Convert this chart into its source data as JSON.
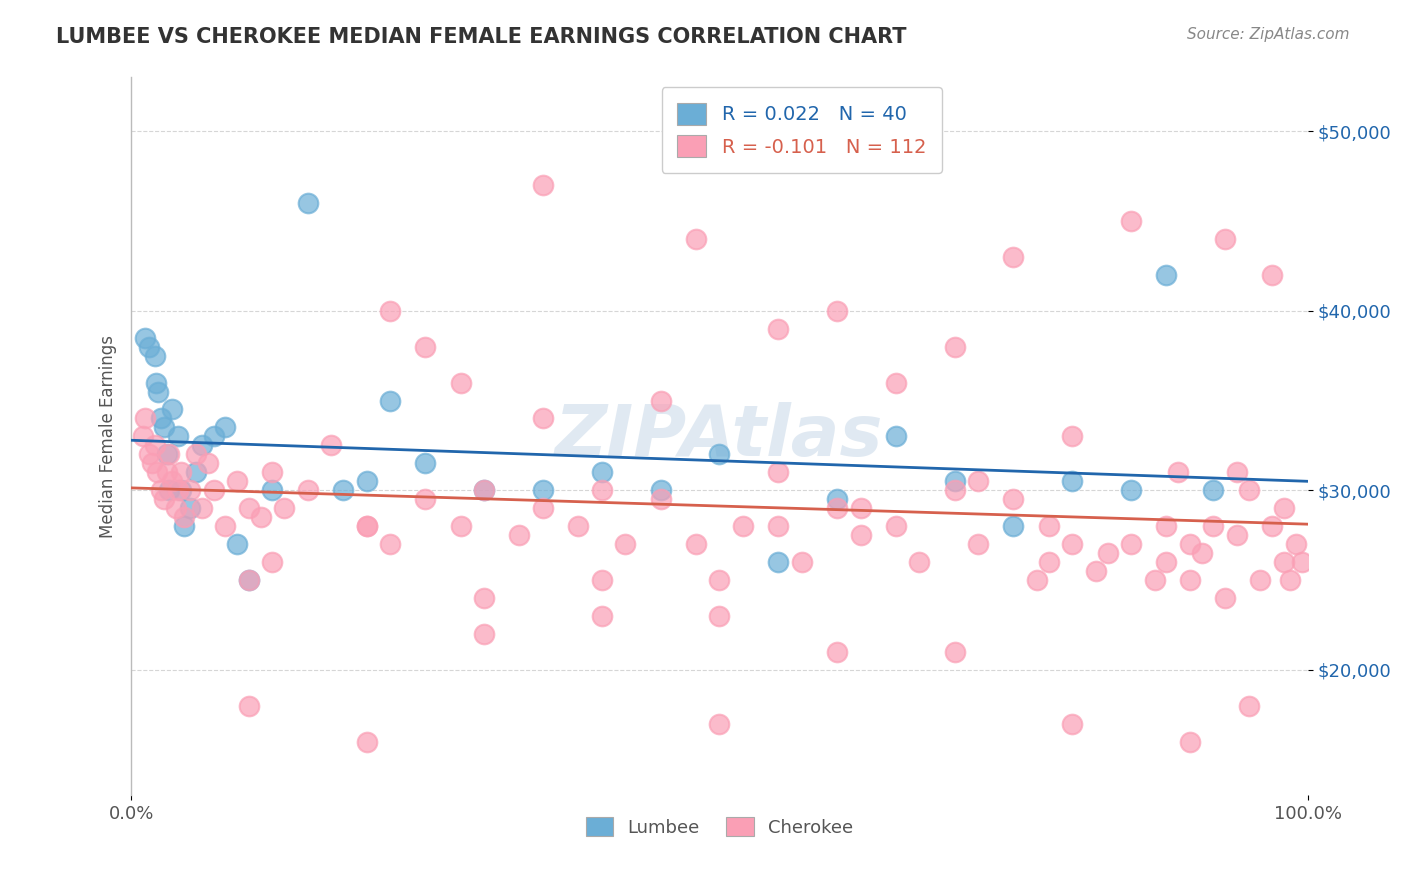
{
  "title": "LUMBEE VS CHEROKEE MEDIAN FEMALE EARNINGS CORRELATION CHART",
  "source": "Source: ZipAtlas.com",
  "xlabel": "",
  "ylabel": "Median Female Earnings",
  "xlim": [
    0.0,
    100.0
  ],
  "ylim": [
    13000,
    53000
  ],
  "yticks": [
    20000,
    30000,
    40000,
    50000
  ],
  "ytick_labels": [
    "$20,000",
    "$30,000",
    "$40,000",
    "$50,000"
  ],
  "xticks": [
    0.0,
    100.0
  ],
  "xtick_labels": [
    "0.0%",
    "100.0%"
  ],
  "legend_R_lumbee": "R = 0.022",
  "legend_N_lumbee": "N = 40",
  "legend_R_cherokee": "R = -0.101",
  "legend_N_cherokee": "N = 112",
  "lumbee_color": "#6baed6",
  "cherokee_color": "#fa9fb5",
  "lumbee_line_color": "#2166ac",
  "cherokee_line_color": "#d6604d",
  "watermark": "ZIPAtlas",
  "watermark_color": "#c8d8e8",
  "background_color": "#ffffff",
  "lumbee_x": [
    1.2,
    1.5,
    2.0,
    2.1,
    2.3,
    2.5,
    2.8,
    3.0,
    3.2,
    3.5,
    4.0,
    4.2,
    4.5,
    5.0,
    5.5,
    6.0,
    7.0,
    8.0,
    9.0,
    10.0,
    12.0,
    15.0,
    18.0,
    20.0,
    22.0,
    25.0,
    30.0,
    35.0,
    40.0,
    45.0,
    50.0,
    55.0,
    60.0,
    65.0,
    70.0,
    75.0,
    80.0,
    85.0,
    88.0,
    92.0
  ],
  "lumbee_y": [
    38500,
    38000,
    37500,
    36000,
    35500,
    34000,
    33500,
    32000,
    30000,
    34500,
    33000,
    30000,
    28000,
    29000,
    31000,
    32500,
    33000,
    33500,
    27000,
    25000,
    30000,
    46000,
    30000,
    30500,
    35000,
    31500,
    30000,
    30000,
    31000,
    30000,
    32000,
    26000,
    29500,
    33000,
    30500,
    28000,
    30500,
    30000,
    42000,
    30000
  ],
  "cherokee_x": [
    1.0,
    1.2,
    1.5,
    1.8,
    2.0,
    2.2,
    2.5,
    2.8,
    3.0,
    3.2,
    3.5,
    3.8,
    4.0,
    4.2,
    4.5,
    5.0,
    5.5,
    6.0,
    6.5,
    7.0,
    8.0,
    9.0,
    10.0,
    11.0,
    12.0,
    13.0,
    15.0,
    17.0,
    20.0,
    22.0,
    25.0,
    28.0,
    30.0,
    33.0,
    35.0,
    38.0,
    40.0,
    42.0,
    45.0,
    48.0,
    50.0,
    52.0,
    55.0,
    57.0,
    60.0,
    62.0,
    65.0,
    67.0,
    70.0,
    72.0,
    75.0,
    77.0,
    78.0,
    80.0,
    82.0,
    83.0,
    85.0,
    87.0,
    88.0,
    89.0,
    90.0,
    91.0,
    92.0,
    93.0,
    94.0,
    95.0,
    96.0,
    97.0,
    98.0,
    98.5,
    99.0,
    99.5,
    35.0,
    48.0,
    55.0,
    22.0,
    60.0,
    70.0,
    80.0,
    90.0,
    10.0,
    20.0,
    30.0,
    40.0,
    50.0,
    65.0,
    75.0,
    85.0,
    93.0,
    97.0,
    10.0,
    20.0,
    30.0,
    40.0,
    50.0,
    60.0,
    70.0,
    80.0,
    90.0,
    95.0,
    28.0,
    35.0,
    45.0,
    55.0,
    62.0,
    72.0,
    78.0,
    88.0,
    94.0,
    98.0,
    12.0,
    25.0
  ],
  "cherokee_y": [
    33000,
    34000,
    32000,
    31500,
    32500,
    31000,
    30000,
    29500,
    31000,
    32000,
    30500,
    29000,
    30000,
    31000,
    28500,
    30000,
    32000,
    29000,
    31500,
    30000,
    28000,
    30500,
    29000,
    28500,
    31000,
    29000,
    30000,
    32500,
    28000,
    27000,
    29500,
    28000,
    30000,
    27500,
    29000,
    28000,
    30000,
    27000,
    29500,
    27000,
    25000,
    28000,
    31000,
    26000,
    29000,
    27500,
    28000,
    26000,
    30000,
    27000,
    29500,
    25000,
    26000,
    27000,
    25500,
    26500,
    27000,
    25000,
    26000,
    31000,
    25000,
    26500,
    28000,
    24000,
    27500,
    30000,
    25000,
    28000,
    26000,
    25000,
    27000,
    26000,
    47000,
    44000,
    39000,
    40000,
    40000,
    38000,
    33000,
    27000,
    18000,
    16000,
    24000,
    23000,
    17000,
    36000,
    43000,
    45000,
    44000,
    42000,
    25000,
    28000,
    22000,
    25000,
    23000,
    21000,
    21000,
    17000,
    16000,
    18000,
    36000,
    34000,
    35000,
    28000,
    29000,
    30500,
    28000,
    28000,
    31000,
    29000,
    26000,
    38000
  ]
}
